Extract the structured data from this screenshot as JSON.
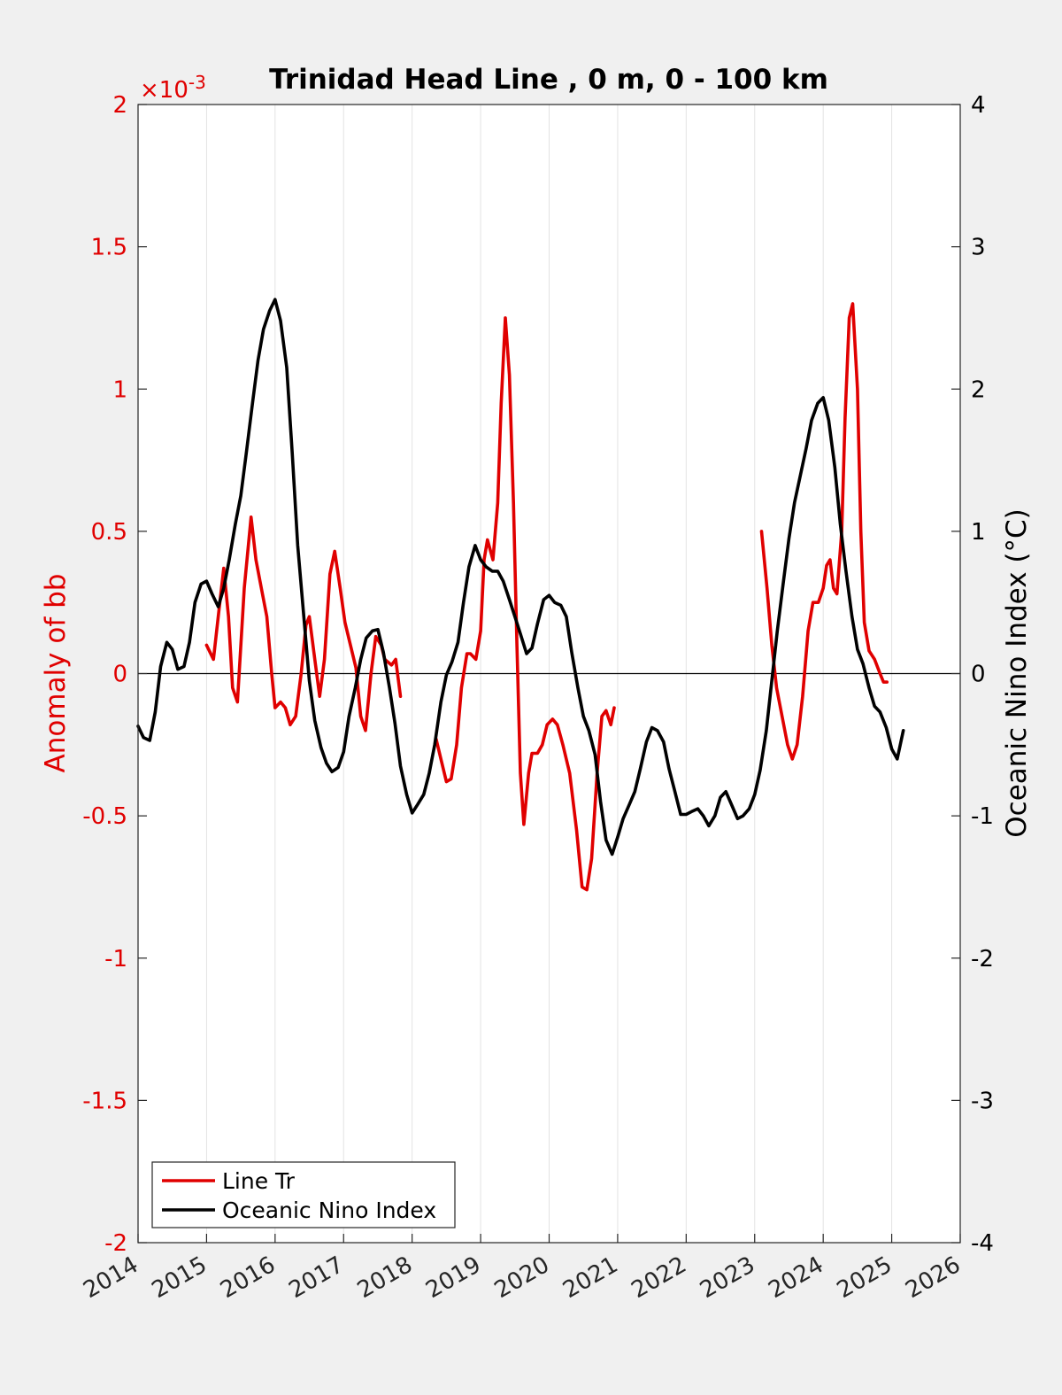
{
  "chart_data": {
    "type": "line",
    "title": "Trinidad Head Line , 0 m, 0 - 100 km",
    "left_axis": {
      "label": "Anomaly of bb",
      "exponent_label": "×10",
      "exponent_power": "-3",
      "range": [
        -2,
        2
      ],
      "ticks": [
        2,
        1.5,
        1,
        0.5,
        0,
        -0.5,
        -1,
        -1.5,
        -2
      ],
      "tick_labels": [
        "2",
        "1.5",
        "1",
        "0.5",
        "0",
        "-0.5",
        "-1",
        "-1.5",
        "-2"
      ],
      "color": "#e00000"
    },
    "right_axis": {
      "label": "Oceanic Nino Index (°C)",
      "range": [
        -4,
        4
      ],
      "ticks": [
        4,
        3,
        2,
        1,
        0,
        -1,
        -2,
        -3,
        -4
      ],
      "tick_labels": [
        "4",
        "3",
        "2",
        "1",
        "0",
        "-1",
        "-2",
        "-3",
        "-4"
      ],
      "color": "#000000"
    },
    "x_axis": {
      "range": [
        2014,
        2026
      ],
      "ticks": [
        2014,
        2015,
        2016,
        2017,
        2018,
        2019,
        2020,
        2021,
        2022,
        2023,
        2024,
        2025,
        2026
      ],
      "tick_labels": [
        "2014",
        "2015",
        "2016",
        "2017",
        "2018",
        "2019",
        "2020",
        "2021",
        "2022",
        "2023",
        "2024",
        "2025",
        "2026"
      ],
      "grid": true
    },
    "zero_line": true,
    "legend": {
      "position": "bottom-left",
      "entries": [
        "Line Tr",
        "Oceanic Nino Index"
      ]
    },
    "series": [
      {
        "name": "Line Tr",
        "axis": "left",
        "color": "#e00000",
        "segments": [
          [
            [
              2015.0,
              0.1
            ],
            [
              2015.1,
              0.05
            ],
            [
              2015.17,
              0.2
            ],
            [
              2015.25,
              0.37
            ],
            [
              2015.32,
              0.2
            ],
            [
              2015.38,
              -0.05
            ],
            [
              2015.45,
              -0.1
            ],
            [
              2015.55,
              0.3
            ],
            [
              2015.65,
              0.55
            ],
            [
              2015.72,
              0.4
            ],
            [
              2015.8,
              0.3
            ],
            [
              2015.88,
              0.2
            ],
            [
              2015.95,
              0.0
            ],
            [
              2016.0,
              -0.12
            ],
            [
              2016.08,
              -0.1
            ],
            [
              2016.15,
              -0.12
            ],
            [
              2016.22,
              -0.18
            ],
            [
              2016.3,
              -0.15
            ],
            [
              2016.38,
              0.0
            ],
            [
              2016.45,
              0.17
            ],
            [
              2016.5,
              0.2
            ],
            [
              2016.58,
              0.05
            ],
            [
              2016.65,
              -0.08
            ],
            [
              2016.72,
              0.05
            ],
            [
              2016.8,
              0.35
            ],
            [
              2016.87,
              0.43
            ],
            [
              2016.95,
              0.3
            ],
            [
              2017.02,
              0.18
            ],
            [
              2017.1,
              0.1
            ],
            [
              2017.18,
              0.02
            ],
            [
              2017.25,
              -0.15
            ],
            [
              2017.32,
              -0.2
            ],
            [
              2017.4,
              0.0
            ],
            [
              2017.47,
              0.13
            ],
            [
              2017.55,
              0.1
            ],
            [
              2017.6,
              0.05
            ],
            [
              2017.7,
              0.03
            ],
            [
              2017.76,
              0.05
            ],
            [
              2017.83,
              -0.08
            ]
          ],
          [
            [
              2018.35,
              -0.23
            ],
            [
              2018.42,
              -0.3
            ],
            [
              2018.5,
              -0.38
            ],
            [
              2018.57,
              -0.37
            ],
            [
              2018.65,
              -0.25
            ],
            [
              2018.72,
              -0.05
            ],
            [
              2018.8,
              0.07
            ],
            [
              2018.85,
              0.07
            ],
            [
              2018.93,
              0.05
            ],
            [
              2019.0,
              0.15
            ],
            [
              2019.05,
              0.4
            ],
            [
              2019.1,
              0.47
            ],
            [
              2019.18,
              0.4
            ],
            [
              2019.25,
              0.6
            ],
            [
              2019.3,
              0.95
            ],
            [
              2019.36,
              1.25
            ],
            [
              2019.42,
              1.05
            ],
            [
              2019.48,
              0.6
            ],
            [
              2019.53,
              0.1
            ],
            [
              2019.58,
              -0.35
            ],
            [
              2019.63,
              -0.53
            ],
            [
              2019.7,
              -0.35
            ],
            [
              2019.75,
              -0.28
            ],
            [
              2019.83,
              -0.28
            ],
            [
              2019.9,
              -0.25
            ],
            [
              2019.97,
              -0.18
            ],
            [
              2020.05,
              -0.16
            ],
            [
              2020.12,
              -0.18
            ],
            [
              2020.2,
              -0.25
            ],
            [
              2020.3,
              -0.35
            ],
            [
              2020.4,
              -0.55
            ],
            [
              2020.48,
              -0.75
            ],
            [
              2020.55,
              -0.76
            ],
            [
              2020.62,
              -0.65
            ],
            [
              2020.7,
              -0.35
            ],
            [
              2020.77,
              -0.15
            ],
            [
              2020.83,
              -0.13
            ],
            [
              2020.9,
              -0.18
            ],
            [
              2020.95,
              -0.12
            ]
          ],
          [
            [
              2023.1,
              0.5
            ],
            [
              2023.18,
              0.3
            ],
            [
              2023.25,
              0.1
            ],
            [
              2023.32,
              -0.05
            ],
            [
              2023.4,
              -0.15
            ],
            [
              2023.48,
              -0.25
            ],
            [
              2023.55,
              -0.3
            ],
            [
              2023.62,
              -0.25
            ],
            [
              2023.7,
              -0.08
            ],
            [
              2023.78,
              0.15
            ],
            [
              2023.85,
              0.25
            ],
            [
              2023.93,
              0.25
            ],
            [
              2024.0,
              0.3
            ],
            [
              2024.05,
              0.38
            ],
            [
              2024.1,
              0.4
            ],
            [
              2024.15,
              0.3
            ],
            [
              2024.2,
              0.28
            ],
            [
              2024.27,
              0.5
            ],
            [
              2024.32,
              0.9
            ],
            [
              2024.38,
              1.25
            ],
            [
              2024.43,
              1.3
            ],
            [
              2024.5,
              1.0
            ],
            [
              2024.55,
              0.5
            ],
            [
              2024.6,
              0.18
            ],
            [
              2024.67,
              0.08
            ],
            [
              2024.75,
              0.05
            ],
            [
              2024.83,
              0.0
            ],
            [
              2024.88,
              -0.03
            ],
            [
              2024.93,
              -0.03
            ]
          ]
        ]
      },
      {
        "name": "Oceanic Nino Index",
        "axis": "right",
        "color": "#000000",
        "points": [
          [
            2014.0,
            -0.37
          ],
          [
            2014.08,
            -0.45
          ],
          [
            2014.17,
            -0.47
          ],
          [
            2014.25,
            -0.27
          ],
          [
            2014.33,
            0.05
          ],
          [
            2014.42,
            0.22
          ],
          [
            2014.5,
            0.17
          ],
          [
            2014.58,
            0.03
          ],
          [
            2014.67,
            0.05
          ],
          [
            2014.75,
            0.22
          ],
          [
            2014.83,
            0.5
          ],
          [
            2014.92,
            0.63
          ],
          [
            2015.0,
            0.65
          ],
          [
            2015.08,
            0.56
          ],
          [
            2015.17,
            0.47
          ],
          [
            2015.25,
            0.6
          ],
          [
            2015.33,
            0.8
          ],
          [
            2015.42,
            1.05
          ],
          [
            2015.5,
            1.25
          ],
          [
            2015.58,
            1.55
          ],
          [
            2015.67,
            1.9
          ],
          [
            2015.75,
            2.2
          ],
          [
            2015.83,
            2.42
          ],
          [
            2015.92,
            2.55
          ],
          [
            2016.0,
            2.63
          ],
          [
            2016.08,
            2.48
          ],
          [
            2016.17,
            2.15
          ],
          [
            2016.25,
            1.55
          ],
          [
            2016.33,
            0.9
          ],
          [
            2016.42,
            0.4
          ],
          [
            2016.5,
            -0.05
          ],
          [
            2016.58,
            -0.33
          ],
          [
            2016.67,
            -0.52
          ],
          [
            2016.75,
            -0.63
          ],
          [
            2016.83,
            -0.69
          ],
          [
            2016.92,
            -0.66
          ],
          [
            2017.0,
            -0.55
          ],
          [
            2017.08,
            -0.3
          ],
          [
            2017.17,
            -0.1
          ],
          [
            2017.25,
            0.1
          ],
          [
            2017.33,
            0.25
          ],
          [
            2017.42,
            0.3
          ],
          [
            2017.5,
            0.31
          ],
          [
            2017.58,
            0.15
          ],
          [
            2017.67,
            -0.1
          ],
          [
            2017.75,
            -0.35
          ],
          [
            2017.83,
            -0.65
          ],
          [
            2017.92,
            -0.85
          ],
          [
            2018.0,
            -0.98
          ],
          [
            2018.08,
            -0.92
          ],
          [
            2018.17,
            -0.85
          ],
          [
            2018.25,
            -0.7
          ],
          [
            2018.33,
            -0.5
          ],
          [
            2018.42,
            -0.2
          ],
          [
            2018.5,
            -0.01
          ],
          [
            2018.58,
            0.08
          ],
          [
            2018.67,
            0.22
          ],
          [
            2018.75,
            0.5
          ],
          [
            2018.83,
            0.75
          ],
          [
            2018.92,
            0.9
          ],
          [
            2019.0,
            0.8
          ],
          [
            2019.08,
            0.75
          ],
          [
            2019.17,
            0.72
          ],
          [
            2019.25,
            0.72
          ],
          [
            2019.33,
            0.65
          ],
          [
            2019.42,
            0.52
          ],
          [
            2019.5,
            0.4
          ],
          [
            2019.58,
            0.28
          ],
          [
            2019.67,
            0.14
          ],
          [
            2019.75,
            0.18
          ],
          [
            2019.83,
            0.35
          ],
          [
            2019.92,
            0.52
          ],
          [
            2020.0,
            0.55
          ],
          [
            2020.08,
            0.5
          ],
          [
            2020.17,
            0.48
          ],
          [
            2020.25,
            0.4
          ],
          [
            2020.33,
            0.15
          ],
          [
            2020.42,
            -0.1
          ],
          [
            2020.5,
            -0.3
          ],
          [
            2020.58,
            -0.4
          ],
          [
            2020.67,
            -0.57
          ],
          [
            2020.75,
            -0.9
          ],
          [
            2020.83,
            -1.17
          ],
          [
            2020.92,
            -1.27
          ],
          [
            2021.0,
            -1.15
          ],
          [
            2021.08,
            -1.02
          ],
          [
            2021.17,
            -0.92
          ],
          [
            2021.25,
            -0.83
          ],
          [
            2021.33,
            -0.67
          ],
          [
            2021.42,
            -0.48
          ],
          [
            2021.5,
            -0.38
          ],
          [
            2021.58,
            -0.4
          ],
          [
            2021.67,
            -0.48
          ],
          [
            2021.75,
            -0.67
          ],
          [
            2021.83,
            -0.82
          ],
          [
            2021.92,
            -0.99
          ],
          [
            2022.0,
            -0.99
          ],
          [
            2022.08,
            -0.97
          ],
          [
            2022.17,
            -0.95
          ],
          [
            2022.25,
            -1.0
          ],
          [
            2022.33,
            -1.07
          ],
          [
            2022.42,
            -1.0
          ],
          [
            2022.5,
            -0.87
          ],
          [
            2022.58,
            -0.83
          ],
          [
            2022.67,
            -0.93
          ],
          [
            2022.75,
            -1.02
          ],
          [
            2022.83,
            -1.0
          ],
          [
            2022.92,
            -0.95
          ],
          [
            2023.0,
            -0.85
          ],
          [
            2023.08,
            -0.68
          ],
          [
            2023.17,
            -0.4
          ],
          [
            2023.25,
            -0.05
          ],
          [
            2023.33,
            0.3
          ],
          [
            2023.42,
            0.65
          ],
          [
            2023.5,
            0.95
          ],
          [
            2023.58,
            1.2
          ],
          [
            2023.67,
            1.4
          ],
          [
            2023.75,
            1.58
          ],
          [
            2023.83,
            1.78
          ],
          [
            2023.92,
            1.9
          ],
          [
            2024.0,
            1.94
          ],
          [
            2024.08,
            1.78
          ],
          [
            2024.17,
            1.45
          ],
          [
            2024.25,
            1.05
          ],
          [
            2024.33,
            0.73
          ],
          [
            2024.42,
            0.4
          ],
          [
            2024.5,
            0.17
          ],
          [
            2024.58,
            0.07
          ],
          [
            2024.67,
            -0.1
          ],
          [
            2024.75,
            -0.23
          ],
          [
            2024.83,
            -0.27
          ],
          [
            2024.92,
            -0.38
          ],
          [
            2025.0,
            -0.53
          ],
          [
            2025.08,
            -0.6
          ],
          [
            2025.17,
            -0.4
          ]
        ]
      }
    ]
  }
}
